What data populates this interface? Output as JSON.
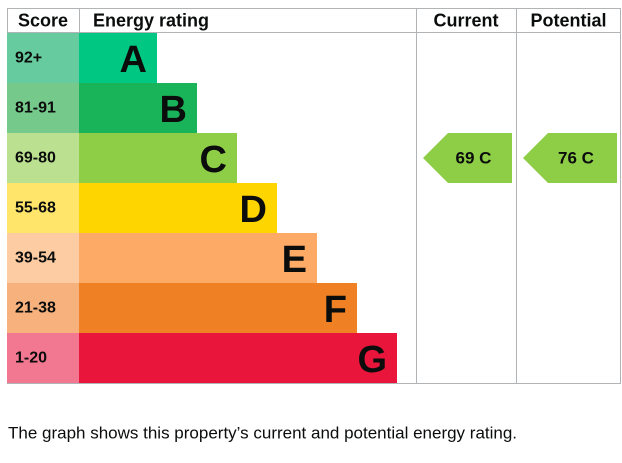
{
  "chart_data": {
    "type": "epc",
    "score_header": "Score",
    "rating_header": "Energy rating",
    "bands": [
      {
        "score": "92+",
        "rating": "A",
        "color": "#00c781",
        "score_color": "#66cc9f"
      },
      {
        "score": "81-91",
        "rating": "B",
        "color": "#19b459",
        "score_color": "#75c98b"
      },
      {
        "score": "69-80",
        "rating": "C",
        "color": "#8dce46",
        "score_color": "#bbe08f"
      },
      {
        "score": "55-68",
        "rating": "D",
        "color": "#ffd500",
        "score_color": "#ffe66b"
      },
      {
        "score": "39-54",
        "rating": "E",
        "color": "#fcaa65",
        "score_color": "#fdcca2"
      },
      {
        "score": "21-38",
        "rating": "F",
        "color": "#ef8023",
        "score_color": "#f6b17d"
      },
      {
        "score": "1-20",
        "rating": "G",
        "color": "#e9153b",
        "score_color": "#f27790"
      }
    ],
    "series": [
      {
        "name": "Current",
        "values": [
          69
        ],
        "value_labels": [
          "69 C"
        ],
        "color": "#8dce46"
      },
      {
        "name": "Potential",
        "values": [
          76
        ],
        "value_labels": [
          "76 C"
        ],
        "color": "#8dce46"
      }
    ],
    "note": "The graph shows this property’s current and potential energy rating."
  }
}
